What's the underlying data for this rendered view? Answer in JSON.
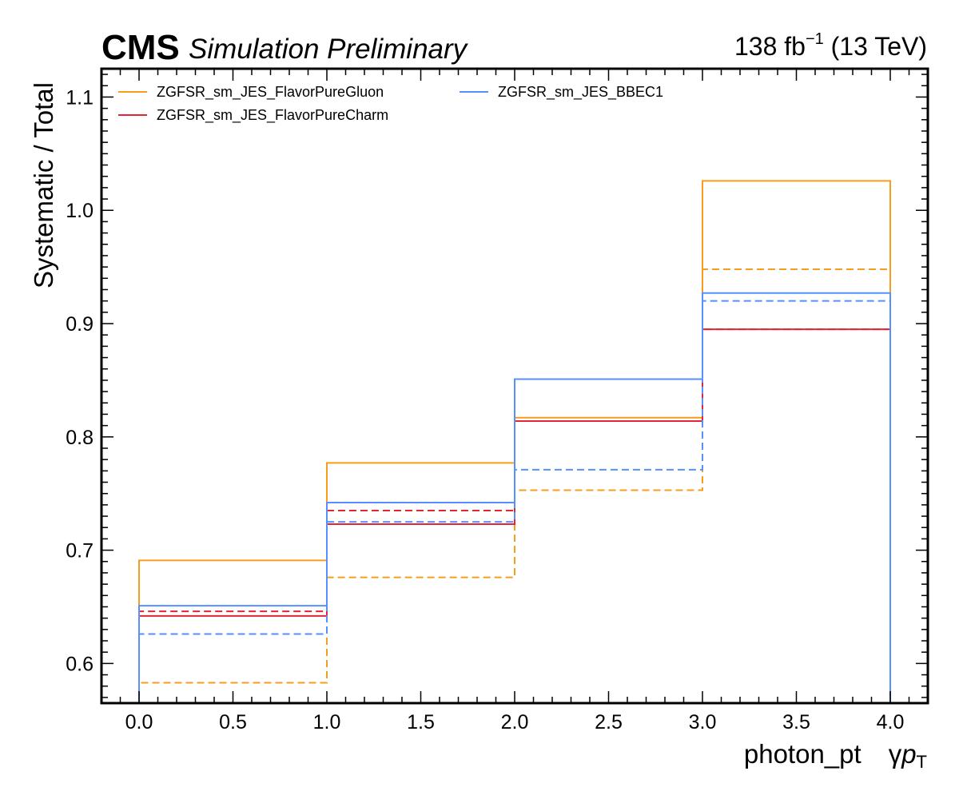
{
  "header": {
    "experiment": "CMS",
    "subtitle": "Simulation Preliminary",
    "lumi_value": "138 fb",
    "lumi_exp": "−1",
    "lumi_energy": " (13 TeV)"
  },
  "chart_data": {
    "type": "line",
    "step": true,
    "x_edges": [
      0,
      1,
      2,
      3,
      4
    ],
    "xlim": [
      -0.2,
      4.2
    ],
    "ylim": [
      0.565,
      1.125
    ],
    "xticks": [
      0.0,
      0.5,
      1.0,
      1.5,
      2.0,
      2.5,
      3.0,
      3.5,
      4.0
    ],
    "xtick_labels": [
      "0.0",
      "0.5",
      "1.0",
      "1.5",
      "2.0",
      "2.5",
      "3.0",
      "3.5",
      "4.0"
    ],
    "yticks": [
      0.6,
      0.7,
      0.8,
      0.9,
      1.0,
      1.1
    ],
    "ytick_labels": [
      "0.6",
      "0.7",
      "0.8",
      "0.9",
      "1.0",
      "1.1"
    ],
    "xlabel": "photon_pt",
    "xlabel_symbol": "γ",
    "xlabel_p": "p",
    "xlabel_sub": "T",
    "ylabel": "Systematic / Total",
    "legend_position": "top-left",
    "series": [
      {
        "name": "ZGFSR_sm_JES_FlavorPureGluon",
        "color": "#f89c20",
        "style": "solid",
        "values": [
          0.691,
          0.777,
          0.817,
          1.026
        ]
      },
      {
        "name": "ZGFSR_sm_JES_FlavorPureGluon",
        "color": "#f89c20",
        "style": "dashed",
        "values": [
          0.583,
          0.676,
          0.753,
          0.948
        ]
      },
      {
        "name": "ZGFSR_sm_JES_FlavorPureCharm",
        "color": "#e42536",
        "style": "solid",
        "values": [
          0.642,
          0.723,
          0.814,
          0.895
        ]
      },
      {
        "name": "ZGFSR_sm_JES_FlavorPureCharm",
        "color": "#e42536",
        "style": "dashed",
        "values": [
          0.646,
          0.735,
          0.814,
          0.895
        ]
      },
      {
        "name": "ZGFSR_sm_JES_BBEC1",
        "color": "#5790fc",
        "style": "solid",
        "values": [
          0.651,
          0.742,
          0.851,
          0.927
        ]
      },
      {
        "name": "ZGFSR_sm_JES_BBEC1",
        "color": "#5790fc",
        "style": "dashed",
        "values": [
          0.626,
          0.725,
          0.771,
          0.92
        ]
      }
    ],
    "legend": [
      {
        "label": "ZGFSR_sm_JES_FlavorPureGluon",
        "color": "#f89c20"
      },
      {
        "label": "ZGFSR_sm_JES_FlavorPureCharm",
        "color": "#e42536"
      },
      {
        "label": "ZGFSR_sm_JES_BBEC1",
        "color": "#5790fc"
      }
    ]
  }
}
